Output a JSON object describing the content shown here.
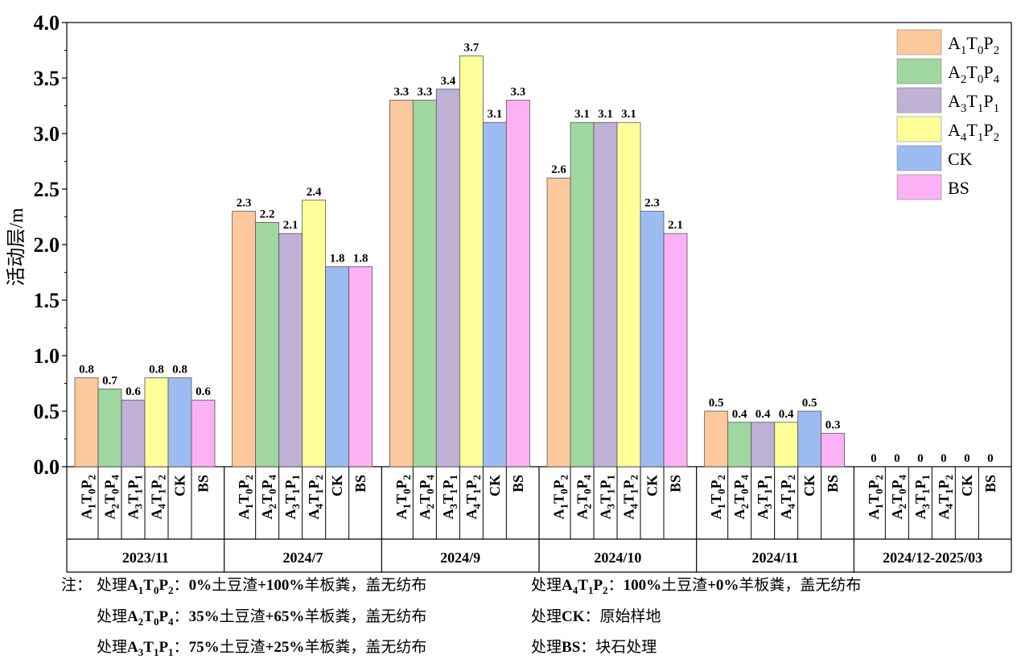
{
  "chart_data": {
    "type": "bar",
    "ylabel": "活动层/m",
    "ylim": [
      0,
      4.0
    ],
    "yticks": [
      "0.0",
      "0.5",
      "1.0",
      "1.5",
      "2.0",
      "2.5",
      "3.0",
      "3.5",
      "4.0"
    ],
    "grid": false,
    "legend_position": "top-right",
    "treatments": [
      {
        "letter1": "A",
        "s1": "1",
        "letter2": "T",
        "s2": "0",
        "letter3": "P",
        "s3": "2",
        "color": "#fdc89b"
      },
      {
        "letter1": "A",
        "s1": "2",
        "letter2": "T",
        "s2": "0",
        "letter3": "P",
        "s3": "4",
        "color": "#a0d7a0"
      },
      {
        "letter1": "A",
        "s1": "3",
        "letter2": "T",
        "s2": "1",
        "letter3": "P",
        "s3": "1",
        "color": "#bfb1d5"
      },
      {
        "letter1": "A",
        "s1": "4",
        "letter2": "T",
        "s2": "1",
        "letter3": "P",
        "s3": "2",
        "color": "#ffff99"
      },
      {
        "label": "CK",
        "color": "#9cbcf1"
      },
      {
        "label": "BS",
        "color": "#fbb1f4"
      }
    ],
    "groups": [
      {
        "name": "2023/11",
        "values": [
          0.8,
          0.7,
          0.6,
          0.8,
          0.8,
          0.6
        ],
        "labels": [
          "0.8",
          "0.7",
          "0.6",
          "0.8",
          "0.8",
          "0.6"
        ]
      },
      {
        "name": "2024/7",
        "values": [
          2.3,
          2.2,
          2.1,
          2.4,
          1.8,
          1.8
        ],
        "labels": [
          "2.3",
          "2.2",
          "2.1",
          "2.4",
          "1.8",
          "1.8"
        ]
      },
      {
        "name": "2024/9",
        "values": [
          3.3,
          3.3,
          3.4,
          3.7,
          3.1,
          3.3
        ],
        "labels": [
          "3.3",
          "3.3",
          "3.4",
          "3.7",
          "3.1",
          "3.3"
        ]
      },
      {
        "name": "2024/10",
        "values": [
          2.6,
          3.1,
          3.1,
          3.1,
          2.3,
          2.1
        ],
        "labels": [
          "2.6",
          "3.1",
          "3.1",
          "3.1",
          "2.3",
          "2.1"
        ]
      },
      {
        "name": "2024/11",
        "values": [
          0.5,
          0.4,
          0.4,
          0.4,
          0.5,
          0.3
        ],
        "labels": [
          "0.5",
          "0.4",
          "0.4",
          "0.4",
          "0.5",
          "0.3"
        ]
      },
      {
        "name": "2024/12-2025/03",
        "values": [
          0,
          0,
          0,
          0,
          0,
          0
        ],
        "labels": [
          "0",
          "0",
          "0",
          "0",
          "0",
          "0"
        ]
      }
    ]
  },
  "notes": {
    "prefix": "注：",
    "lines": [
      [
        {
          "pre": "处理",
          "name": [
            [
              "A",
              "1"
            ],
            [
              "T",
              "0"
            ],
            [
              "P",
              "2"
            ]
          ],
          "sep": "：",
          "desc": [
            [
              "b",
              "0%"
            ],
            [
              "n",
              "土豆渣"
            ],
            [
              "b",
              "+100%"
            ],
            [
              "n",
              "羊板粪，盖无纺布"
            ]
          ]
        },
        {
          "pre": "处理",
          "name": [
            [
              "A",
              "4"
            ],
            [
              "T",
              "1"
            ],
            [
              "P",
              "2"
            ]
          ],
          "sep": "：",
          "desc": [
            [
              "b",
              "100%"
            ],
            [
              "n",
              "土豆渣"
            ],
            [
              "b",
              "+0%"
            ],
            [
              "n",
              "羊板粪，盖无纺布"
            ]
          ]
        }
      ],
      [
        {
          "pre": "处理",
          "name": [
            [
              "A",
              "2"
            ],
            [
              "T",
              "0"
            ],
            [
              "P",
              "4"
            ]
          ],
          "sep": "：",
          "desc": [
            [
              "b",
              "35%"
            ],
            [
              "n",
              "土豆渣"
            ],
            [
              "b",
              "+65%"
            ],
            [
              "n",
              "羊板粪，盖无纺布"
            ]
          ]
        },
        {
          "pre": "处理",
          "name": [
            [
              "CK",
              ""
            ]
          ],
          "sep": "：",
          "desc": [
            [
              "n",
              "原始样地"
            ]
          ]
        }
      ],
      [
        {
          "pre": "处理",
          "name": [
            [
              "A",
              "3"
            ],
            [
              "T",
              "1"
            ],
            [
              "P",
              "1"
            ]
          ],
          "sep": "：",
          "desc": [
            [
              "b",
              "75%"
            ],
            [
              "n",
              "土豆渣"
            ],
            [
              "b",
              "+25%"
            ],
            [
              "n",
              "羊板粪，盖无纺布"
            ]
          ]
        },
        {
          "pre": "处理",
          "name": [
            [
              "BS",
              ""
            ]
          ],
          "sep": "：",
          "desc": [
            [
              "n",
              "块石处理"
            ]
          ]
        }
      ]
    ]
  }
}
